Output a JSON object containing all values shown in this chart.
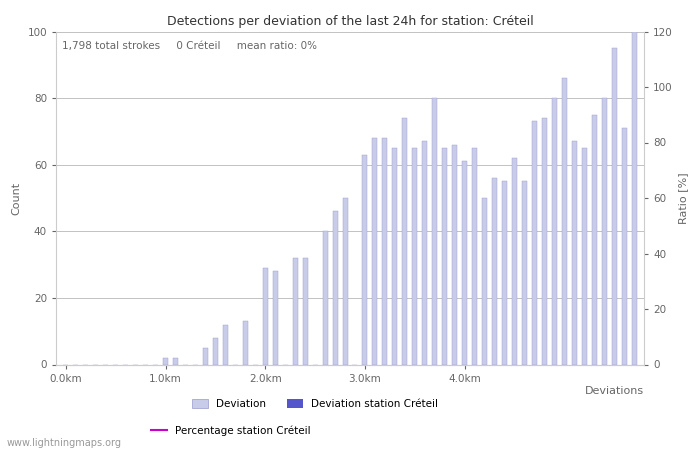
{
  "title": "Detections per deviation of the last 24h for station: Créteil",
  "annotation": "1,798 total strokes     0 Créteil     mean ratio: 0%",
  "xlabel": "Deviations",
  "ylabel_left": "Count",
  "ylabel_right": "Ratio [%]",
  "ylim_left": [
    0,
    100
  ],
  "ylim_right": [
    0,
    120
  ],
  "yticks_left": [
    0,
    20,
    40,
    60,
    80,
    100
  ],
  "yticks_right": [
    0,
    20,
    40,
    60,
    80,
    100,
    120
  ],
  "xtick_labels": [
    "0.0km",
    "1.0km",
    "2.0km",
    "3.0km",
    "4.0km"
  ],
  "xtick_positions": [
    0,
    10,
    20,
    30,
    40
  ],
  "bar_values": [
    0,
    0,
    0,
    0,
    0,
    0,
    0,
    0,
    0,
    0,
    2,
    2,
    0,
    0,
    5,
    8,
    12,
    0,
    13,
    0,
    29,
    28,
    0,
    32,
    32,
    0,
    40,
    46,
    50,
    0,
    63,
    68,
    68,
    65,
    74,
    65,
    67,
    80,
    65,
    66,
    61,
    65,
    50,
    56,
    55,
    62,
    55,
    73,
    74,
    80,
    86,
    67,
    65,
    75,
    80,
    95,
    71,
    100
  ],
  "bar_color": "#c8cce8",
  "bar_edge_color": "#9999cc",
  "station_bar_color": "#5555cc",
  "station_bar_values": [],
  "percentage_line_color": "#cc00cc",
  "background_color": "#ffffff",
  "grid_color": "#aaaaaa",
  "title_fontsize": 9,
  "tick_fontsize": 7.5,
  "label_fontsize": 8,
  "annotation_fontsize": 7.5,
  "legend_label_deviation": "Deviation",
  "legend_label_station": "Deviation station Créteil",
  "legend_label_percentage": "Percentage station Créteil",
  "watermark": "www.lightningmaps.org",
  "total_bars": 58
}
